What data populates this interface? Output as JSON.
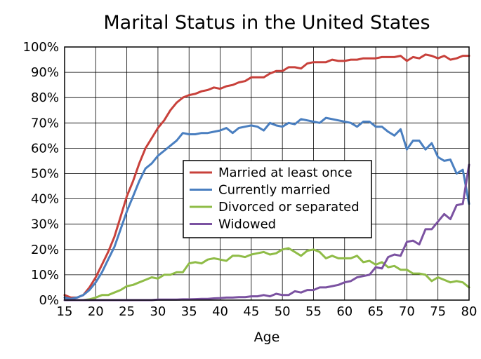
{
  "chart_data": {
    "type": "line",
    "title": "Marital Status in the United States",
    "xlabel": "Age",
    "ylabel": "",
    "xlim": [
      15,
      80
    ],
    "ylim": [
      0,
      100
    ],
    "x_ticks": [
      "15",
      "20",
      "25",
      "30",
      "35",
      "40",
      "45",
      "50",
      "55",
      "60",
      "65",
      "70",
      "75",
      "80"
    ],
    "y_ticks": [
      "0%",
      "10%",
      "20%",
      "30%",
      "40%",
      "50%",
      "60%",
      "70%",
      "80%",
      "90%",
      "100%"
    ],
    "grid": true,
    "legend_position": "center-right",
    "x": [
      15,
      16,
      17,
      18,
      19,
      20,
      21,
      22,
      23,
      24,
      25,
      26,
      27,
      28,
      29,
      30,
      31,
      32,
      33,
      34,
      35,
      36,
      37,
      38,
      39,
      40,
      41,
      42,
      43,
      44,
      45,
      46,
      47,
      48,
      49,
      50,
      51,
      52,
      53,
      54,
      55,
      56,
      57,
      58,
      59,
      60,
      61,
      62,
      63,
      64,
      65,
      66,
      67,
      68,
      69,
      70,
      71,
      72,
      73,
      74,
      75,
      76,
      77,
      78,
      79,
      80
    ],
    "series": [
      {
        "name": "Married at least once",
        "color": "#c8413b",
        "values": [
          2,
          1,
          1,
          2,
          5,
          9,
          14,
          19,
          25,
          33,
          41,
          47,
          54,
          60,
          64,
          68,
          71,
          75,
          78,
          80,
          81,
          81.5,
          82.5,
          83,
          84,
          83.5,
          84.5,
          85,
          86,
          86.5,
          88,
          88,
          88,
          89.5,
          90.5,
          90.5,
          92,
          92,
          91.5,
          93.5,
          94,
          94,
          94,
          95,
          94.5,
          94.5,
          95,
          95,
          95.5,
          95.5,
          95.5,
          96,
          96,
          96,
          96.5,
          94.5,
          96,
          95.5,
          97,
          96.5,
          95.5,
          96.5,
          95,
          95.5,
          96.5,
          96.5
        ]
      },
      {
        "name": "Currently married",
        "color": "#4a7fc0",
        "values": [
          1,
          0.5,
          1,
          2,
          4,
          7,
          11,
          16,
          21,
          28,
          35,
          41,
          47,
          52,
          54,
          57,
          59,
          61,
          63,
          66,
          65.5,
          65.5,
          66,
          66,
          66.5,
          67,
          68,
          66,
          68,
          68.5,
          69,
          68.5,
          67,
          70,
          69,
          68.5,
          70,
          69.5,
          71.5,
          71,
          70.5,
          70,
          72,
          71.5,
          71,
          70.5,
          70,
          68.5,
          70.5,
          70.5,
          68.5,
          68.5,
          66.5,
          65,
          67.5,
          59.5,
          63,
          63,
          59.5,
          62,
          56.5,
          55,
          55.5,
          50,
          51.5,
          38
        ]
      },
      {
        "name": "Divorced or separated",
        "color": "#8fbc47",
        "values": [
          0,
          0,
          0,
          0,
          0.3,
          1,
          2,
          2,
          3,
          4,
          5.5,
          6,
          7,
          8,
          9,
          8.5,
          10,
          10,
          11,
          11,
          14.5,
          15,
          14.5,
          16,
          16.5,
          16,
          15.5,
          17.5,
          17.5,
          17,
          18,
          18.5,
          19,
          18,
          18.5,
          20,
          20.5,
          19,
          17.5,
          19.5,
          20,
          19,
          16.5,
          17.5,
          16.5,
          16.5,
          16.5,
          17.5,
          15,
          15.5,
          14,
          15,
          13,
          13.5,
          12,
          12,
          10.5,
          10.5,
          10,
          7.5,
          9,
          8,
          7,
          7.5,
          7,
          5
        ]
      },
      {
        "name": "Widowed",
        "color": "#7b52a1",
        "values": [
          0,
          0,
          0,
          0,
          0,
          0,
          0,
          0,
          0,
          0,
          0,
          0,
          0,
          0,
          0,
          0.2,
          0.2,
          0.2,
          0.2,
          0.3,
          0.3,
          0.4,
          0.5,
          0.5,
          0.7,
          0.8,
          1,
          1,
          1.2,
          1.2,
          1.5,
          1.5,
          2,
          1.5,
          2.5,
          2,
          2,
          3.5,
          3,
          4,
          4,
          5,
          5,
          5.5,
          6,
          7,
          7.5,
          9,
          9.5,
          10,
          13,
          12.5,
          17,
          18,
          17.5,
          23,
          23.5,
          22,
          28,
          28,
          31,
          34,
          32,
          37.5,
          38,
          53.5
        ]
      }
    ]
  }
}
